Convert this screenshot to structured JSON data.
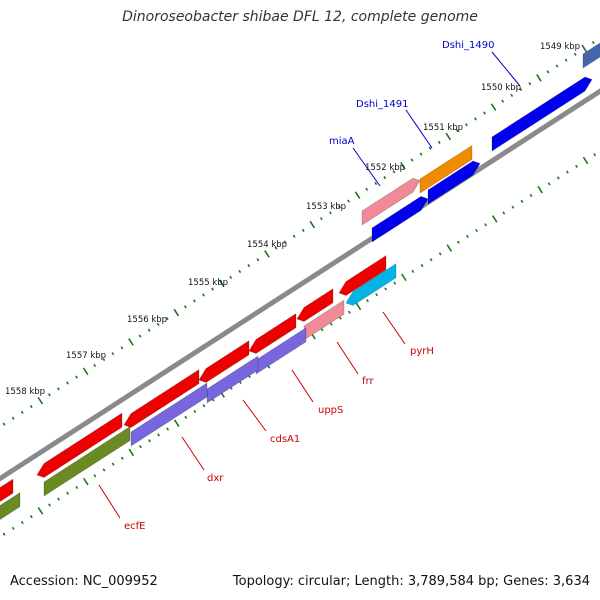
{
  "title": "Dinoroseobacter shibae DFL 12, complete genome",
  "footer": {
    "accession": "Accession: NC_009952",
    "stats": "Topology: circular; Length: 3,789,584 bp; Genes: 3,634"
  },
  "colors": {
    "backbone": "#8a8a8a",
    "tick": "#1a7a1a",
    "label_forward": "#0000cc",
    "label_reverse": "#cc0000"
  },
  "ticks": [
    {
      "label": "1549 kbp"
    },
    {
      "label": "1550 kbp"
    },
    {
      "label": "1551 kbp"
    },
    {
      "label": "1552 kbp"
    },
    {
      "label": "1553 kbp"
    },
    {
      "label": "1554 kbp"
    },
    {
      "label": "1555 kbp"
    },
    {
      "label": "1556 kbp"
    },
    {
      "label": "1557 kbp"
    },
    {
      "label": "1558 kbp"
    }
  ],
  "genes": [
    {
      "name": "Dshi_1490",
      "strand": "forward",
      "labeled": true
    },
    {
      "name": "Dshi_1491",
      "strand": "forward",
      "labeled": true
    },
    {
      "name": "miaA",
      "strand": "forward",
      "labeled": true
    },
    {
      "name": "pyrH",
      "strand": "reverse",
      "labeled": true
    },
    {
      "name": "frr",
      "strand": "reverse",
      "labeled": true
    },
    {
      "name": "uppS",
      "strand": "reverse",
      "labeled": true
    },
    {
      "name": "cdsA1",
      "strand": "reverse",
      "labeled": true
    },
    {
      "name": "dxr",
      "strand": "reverse",
      "labeled": true
    },
    {
      "name": "ecfE",
      "strand": "reverse",
      "labeled": true
    }
  ]
}
